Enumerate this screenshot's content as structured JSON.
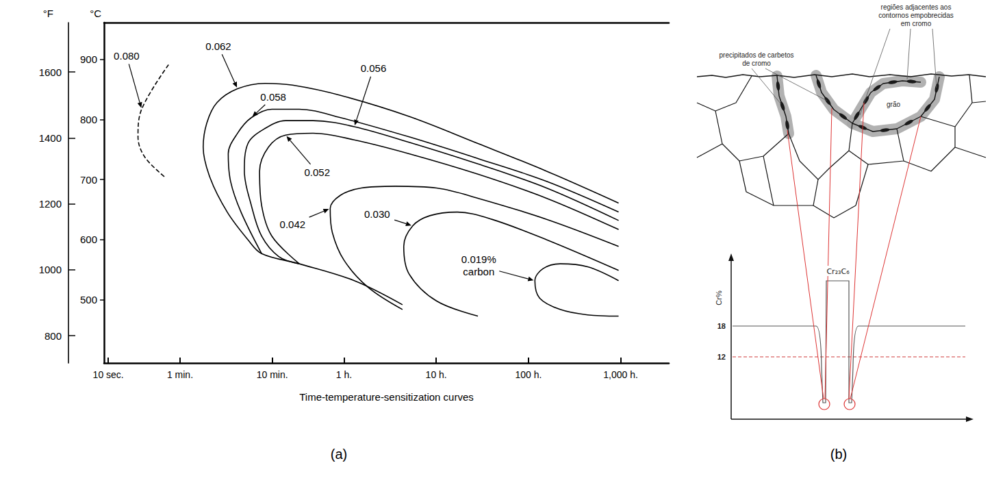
{
  "chart_data": {
    "type": "line",
    "xlabel": "Time-temperature-sensitization curves",
    "ylabel": "°C",
    "y2label": "°F",
    "log": "x",
    "grid": false,
    "xlim": [
      9,
      12000000
    ],
    "xticks": [
      {
        "value": 10,
        "label": "10 sec."
      },
      {
        "value": 60,
        "label": "1 min."
      },
      {
        "value": 600,
        "label": "10 min."
      },
      {
        "value": 3600,
        "label": "1 h."
      },
      {
        "value": 36000,
        "label": "10 h."
      },
      {
        "value": 360000,
        "label": "100 h."
      },
      {
        "value": 3600000,
        "label": "1,000 h."
      }
    ],
    "ylim": [
      395,
      961
    ],
    "yticks": [
      500,
      600,
      700,
      800,
      900
    ],
    "y2lim": [
      717,
      1750
    ],
    "y2ticks": [
      800,
      1000,
      1200,
      1400,
      1600
    ],
    "series": [
      {
        "name": "0.080",
        "color": "#000000",
        "line_style": "dashed",
        "x": [
          45,
          23,
          21,
          25,
          42
        ],
        "values": [
          891,
          817,
          771,
          737,
          703
        ]
      },
      {
        "name": "0.062",
        "color": "#000000",
        "line_style": "solid",
        "x": [
          3420000,
          566000,
          102000,
          18300,
          3300,
          995,
          501,
          252,
          151,
          117,
          107,
          127,
          195,
          327,
          460,
          1180,
          4650,
          15500
        ],
        "values": [
          661,
          714,
          760,
          805,
          840,
          857,
          860,
          851,
          828,
          794,
          754,
          703,
          646,
          600,
          577,
          560,
          532,
          492
        ]
      },
      {
        "name": "0.058",
        "color": "#000000",
        "line_style": "solid",
        "x": [
          3420000,
          566000,
          102000,
          18300,
          3300,
          1180,
          594,
          356,
          252,
          200,
          212,
          275,
          460
        ],
        "values": [
          646,
          697,
          735,
          771,
          803,
          817,
          817,
          803,
          777,
          743,
          697,
          646,
          577
        ]
      },
      {
        "name": "0.056",
        "color": "#000000",
        "line_style": "solid",
        "x": [
          3420000,
          566000,
          102000,
          18300,
          4650,
          1660,
          838,
          501,
          327,
          299,
          356,
          460,
          706,
          1180
        ],
        "values": [
          632,
          686,
          726,
          762,
          788,
          798,
          798,
          785,
          760,
          714,
          657,
          606,
          572,
          560
        ]
      },
      {
        "name": "0.052",
        "color": "#000000",
        "line_style": "solid",
        "x": [
          3420000,
          566000,
          102000,
          18300,
          4650,
          1660,
          838,
          546,
          437,
          460,
          594,
          1180
        ],
        "values": [
          617,
          669,
          709,
          743,
          766,
          777,
          774,
          754,
          714,
          657,
          606,
          560
        ]
      },
      {
        "name": "0.042",
        "color": "#000000",
        "line_style": "solid",
        "x": [
          3420000,
          566000,
          102000,
          36400,
          13000,
          5530,
          3300,
          2550,
          2690,
          3600,
          6560,
          15500
        ],
        "values": [
          589,
          634,
          669,
          686,
          689,
          686,
          674,
          652,
          612,
          566,
          521,
          484
        ]
      },
      {
        "name": "0.030",
        "color": "#000000",
        "line_style": "solid",
        "x": [
          3420000,
          566000,
          144000,
          61000,
          30700,
          20000,
          16000,
          18300,
          36400,
          102000
        ],
        "values": [
          549,
          600,
          634,
          646,
          640,
          623,
          589,
          543,
          498,
          473
        ]
      },
      {
        "name": "0.019% carbon",
        "color": "#000000",
        "line_style": "solid",
        "x": [
          3420000,
          1580000,
          796000,
          519000,
          423000,
          476000,
          796000,
          1580000,
          3420000
        ],
        "values": [
          532,
          555,
          560,
          552,
          532,
          503,
          484,
          475,
          473
        ]
      }
    ]
  },
  "panel_labels": [
    "(a)",
    "(b)"
  ],
  "diagram": {
    "precipitates_label": "precipitados de carbetos de cromo",
    "depleted_label": "regiões adjacentes aos contornos empobrecidas em cromo",
    "grain_label": "grão",
    "profile": {
      "ylabel": "Cr%",
      "levels": [
        18,
        12
      ],
      "carbide_label": "Cr₂₃C₆"
    }
  }
}
